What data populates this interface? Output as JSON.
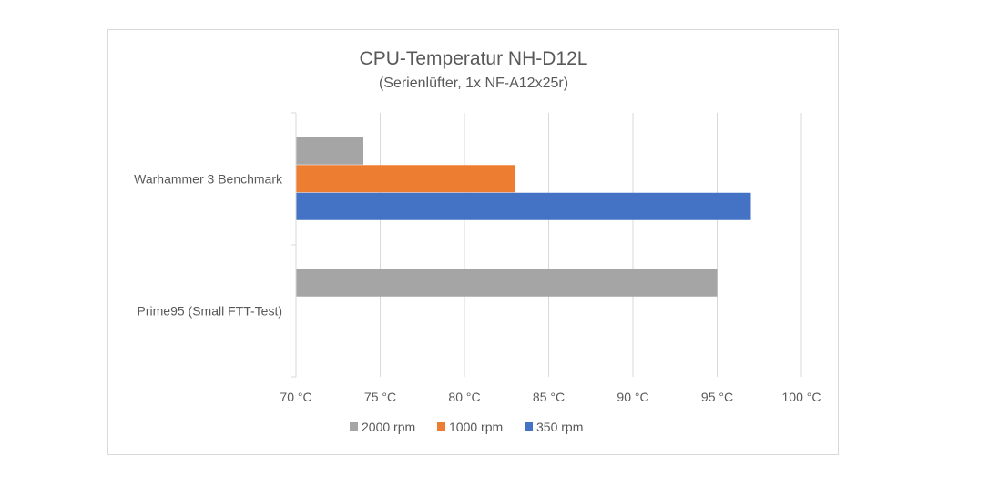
{
  "chart_data": {
    "type": "bar",
    "orientation": "horizontal",
    "title": "CPU-Temperatur NH-D12L",
    "subtitle": "(Serienlüfter, 1x NF-A12x25r)",
    "categories": [
      "Warhammer 3 Benchmark",
      "Prime95 (Small FTT-Test)"
    ],
    "series": [
      {
        "name": "2000 rpm",
        "color": "#a5a5a5",
        "values": [
          74,
          95
        ]
      },
      {
        "name": "1000 rpm",
        "color": "#ed7d31",
        "values": [
          83,
          null
        ]
      },
      {
        "name": "350 rpm",
        "color": "#4472c4",
        "values": [
          97,
          null
        ]
      }
    ],
    "xlim": [
      70,
      100
    ],
    "xticks": [
      70,
      75,
      80,
      85,
      90,
      95,
      100
    ],
    "xtick_labels": [
      "70 °C",
      "75 °C",
      "80 °C",
      "85 °C",
      "90 °C",
      "95 °C",
      "100 °C"
    ],
    "grid": true,
    "legend": "bottom"
  }
}
